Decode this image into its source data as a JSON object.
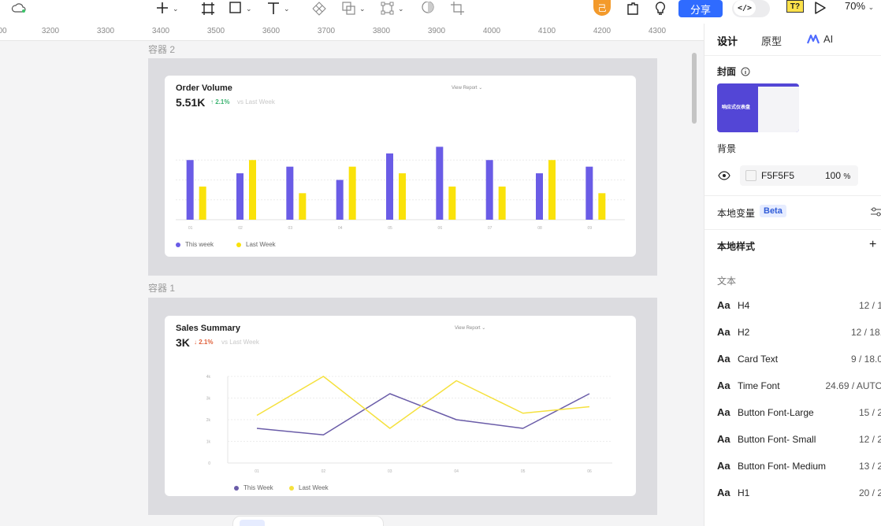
{
  "toolbar": {
    "share_label": "分享",
    "code_label": "</>",
    "avatar_label": "己",
    "plugin_label": "T?",
    "zoom": "70%"
  },
  "ruler": {
    "ticks": [
      "00",
      "3200",
      "3300",
      "3400",
      "3500",
      "3600",
      "3700",
      "3800",
      "3900",
      "4000",
      "4100",
      "4200",
      "4300"
    ]
  },
  "canvas": {
    "frame2_label": "容器 2",
    "frame1_label": "容器 1",
    "order_card": {
      "title": "Order Volume",
      "value": "5.51K",
      "delta": "↑ 2.1%",
      "vs": "vs Last Week",
      "view_report": "View Report ⌄",
      "legend_this": "This week",
      "legend_last": "Last Week"
    },
    "sales_card": {
      "title": "Sales Summary",
      "value": "3K",
      "delta": "↓ 2.1%",
      "vs": "vs Last Week",
      "view_report": "View Report ⌄",
      "legend_this": "This Week",
      "legend_last": "Last Week"
    }
  },
  "chart_data": [
    {
      "type": "bar",
      "categories": [
        "01",
        "02",
        "03",
        "04",
        "05",
        "06",
        "07",
        "08",
        "09"
      ],
      "series": [
        {
          "name": "This week",
          "values": [
            9,
            7,
            8,
            6,
            10,
            11,
            9,
            7,
            8
          ]
        },
        {
          "name": "Last Week",
          "values": [
            5,
            9,
            4,
            8,
            7,
            5,
            5,
            9,
            4
          ]
        }
      ],
      "ylim": [
        0,
        12
      ],
      "grid": true,
      "legend": "bottom-left",
      "colors": [
        "#6a5ce6",
        "#fae20a"
      ]
    },
    {
      "type": "line",
      "categories": [
        "01",
        "02",
        "03",
        "04",
        "05",
        "06"
      ],
      "yticks": [
        "0",
        "1k",
        "2k",
        "3k",
        "4k"
      ],
      "series": [
        {
          "name": "This Week",
          "values": [
            1.6,
            1.3,
            3.2,
            2.0,
            1.6,
            3.2
          ]
        },
        {
          "name": "Last Week",
          "values": [
            2.2,
            4.0,
            1.6,
            3.8,
            2.3,
            2.6
          ]
        }
      ],
      "ylim": [
        0,
        4
      ],
      "grid": true,
      "legend": "bottom-left",
      "colors": [
        "#6a5ca8",
        "#f5e13e"
      ]
    }
  ],
  "panel": {
    "tabs": [
      "设计",
      "原型",
      "AI"
    ],
    "cover_label": "封面",
    "cover_thumb_text": "响应式仪表盘",
    "background_label": "背景",
    "bg_hex": "F5F5F5",
    "bg_opacity": "100",
    "bg_opacity_unit": "%",
    "local_vars_label": "本地变量",
    "beta_label": "Beta",
    "local_styles_label": "本地样式",
    "text_section_label": "文本",
    "aa": "Aa",
    "styles": [
      {
        "name": "H4",
        "value": "12 / 1"
      },
      {
        "name": "H2",
        "value": "12 / 18."
      },
      {
        "name": "Card Text",
        "value": "9 / 18.0"
      },
      {
        "name": "Time Font",
        "value": "24.69 / AUTO"
      },
      {
        "name": "Button Font-Large",
        "value": "15 / 2"
      },
      {
        "name": "Button Font- Small",
        "value": "12 / 2"
      },
      {
        "name": "Button Font- Medium",
        "value": "13 / 2"
      },
      {
        "name": "H1",
        "value": "20 / 2"
      }
    ]
  }
}
